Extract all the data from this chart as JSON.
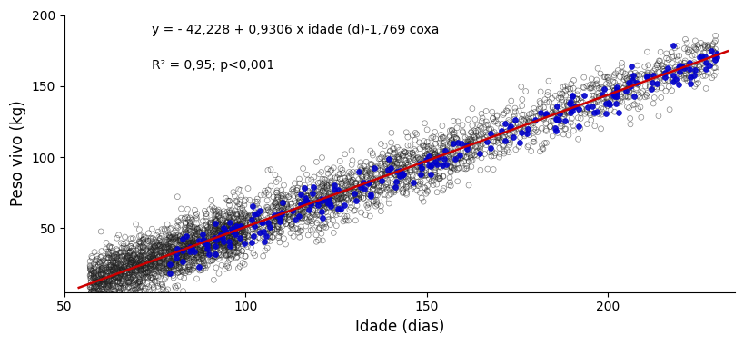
{
  "title": "",
  "xlabel": "Idade (dias)",
  "ylabel": "Peso vivo (kg)",
  "equation_line1": "y = - 42,228 + 0,9306 x idade (d)-1,769 coxa",
  "equation_line2": "R² = 0,95; p<0,001",
  "intercept": -42.228,
  "slope": 0.9306,
  "coxa_effect": -1.769,
  "xlim": [
    50,
    235
  ],
  "ylim": [
    5,
    200
  ],
  "xticks": [
    50,
    100,
    150,
    200
  ],
  "yticks": [
    50,
    100,
    150,
    200
  ],
  "n_black": 4000,
  "n_blue": 250,
  "x_min": 57,
  "x_max": 230,
  "scatter_noise_y": 10,
  "marker_size_black": 18,
  "marker_size_blue": 18,
  "line_color": "#cc0000",
  "black_color": "#222222",
  "blue_color": "#0000cc",
  "background_color": "#ffffff",
  "annotation_fontsize": 10,
  "axis_label_fontsize": 12
}
